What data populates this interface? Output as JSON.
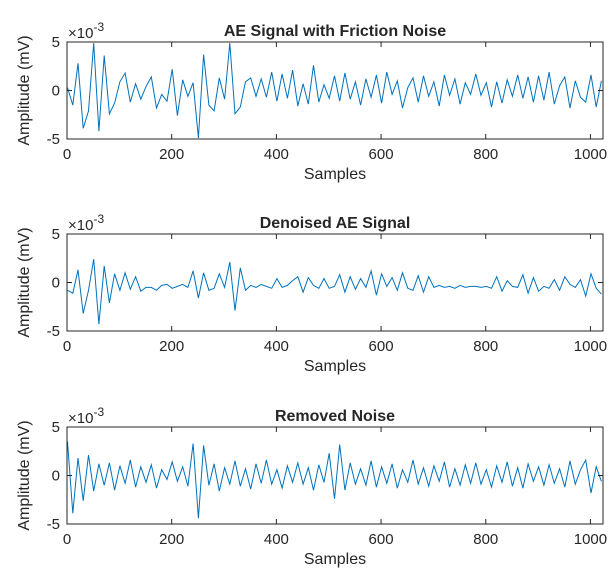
{
  "chart_data": [
    {
      "type": "line",
      "title": "AE Signal with Friction Noise",
      "xlabel": "Samples",
      "ylabel": "Amplitude (mV)",
      "exponent_label": "×10",
      "exponent": "-3",
      "xlim": [
        0,
        1024
      ],
      "ylim": [
        -5,
        5
      ],
      "xticks": [
        "0",
        "200",
        "400",
        "600",
        "800",
        "1000"
      ],
      "yticks": [
        "-5",
        "0",
        "5"
      ],
      "xtick_values": [
        0,
        200,
        400,
        600,
        800,
        1000
      ],
      "ytick_values": [
        -5,
        0,
        5
      ],
      "color": "#0072bd",
      "series": [
        {
          "x_start": 1,
          "x_step": 10,
          "values": [
            0.3,
            -1.5,
            2.8,
            -3.9,
            -2.1,
            4.9,
            -4.2,
            3.6,
            -2.4,
            -1.3,
            0.9,
            1.8,
            -1.2,
            0.7,
            -0.9,
            0.4,
            1.4,
            -1.8,
            -0.4,
            -1.1,
            2.2,
            -2.6,
            1.1,
            -0.6,
            0.8,
            -4.9,
            3.7,
            -1.5,
            -2.1,
            1.3,
            -0.9,
            4.9,
            -2.4,
            -1.7,
            0.9,
            1.3,
            -0.6,
            1.2,
            -0.7,
            1.9,
            -1.1,
            1.7,
            -0.8,
            2.1,
            -1.6,
            0.7,
            -1.4,
            2.6,
            -1.2,
            0.6,
            -0.8,
            1.5,
            -1.1,
            1.8,
            -0.9,
            0.9,
            -1.5,
            1.2,
            -0.7,
            1.6,
            -1.3,
            1.9,
            -0.4,
            1.0,
            -1.8,
            0.3,
            1.3,
            -1.2,
            1.5,
            -0.6,
            0.9,
            -1.6,
            1.6,
            -0.5,
            1.2,
            -1.4,
            0.8,
            -0.4,
            1.7,
            -0.5,
            0.8,
            -1.7,
            0.9,
            -1.3,
            1.1,
            -0.6,
            1.6,
            -0.8,
            1.4,
            -1.2,
            1.5,
            -1.0,
            1.9,
            -1.4,
            0.5,
            1.4,
            -1.8,
            1.0,
            -0.7,
            -1.2,
            1.6,
            -1.7,
            1.0
          ]
        }
      ]
    },
    {
      "type": "line",
      "title": "Denoised AE Signal",
      "xlabel": "Samples",
      "ylabel": "Amplitude (mV)",
      "exponent_label": "×10",
      "exponent": "-3",
      "xlim": [
        0,
        1024
      ],
      "ylim": [
        -5,
        5
      ],
      "xticks": [
        "0",
        "200",
        "400",
        "600",
        "800",
        "1000"
      ],
      "yticks": [
        "-5",
        "0",
        "5"
      ],
      "xtick_values": [
        0,
        200,
        400,
        600,
        800,
        1000
      ],
      "ytick_values": [
        -5,
        0,
        5
      ],
      "color": "#0072bd",
      "series": [
        {
          "x_start": 1,
          "x_step": 10,
          "values": [
            -0.8,
            -1.1,
            1.3,
            -3.2,
            -0.8,
            2.4,
            -4.3,
            1.7,
            -2.1,
            0.9,
            -0.8,
            1.0,
            -0.7,
            0.6,
            -0.9,
            -0.5,
            -0.5,
            -0.8,
            -0.3,
            -0.2,
            -0.6,
            -0.4,
            -0.2,
            -0.5,
            1.2,
            -1.6,
            1.0,
            -0.8,
            -0.6,
            0.9,
            -0.5,
            2.1,
            -2.9,
            1.5,
            -0.8,
            -0.3,
            -0.5,
            -0.2,
            -0.4,
            -0.6,
            0.4,
            -0.5,
            -0.3,
            0.2,
            0.6,
            -1.0,
            0.5,
            -0.3,
            -0.6,
            0.4,
            -0.6,
            -0.4,
            0.8,
            -1.0,
            0.6,
            -0.7,
            0.4,
            -0.5,
            1.2,
            -1.3,
            0.9,
            -0.4,
            0.5,
            -0.8,
            1.0,
            -0.6,
            -0.8,
            0.7,
            -1.0,
            0.6,
            -0.5,
            -0.3,
            -0.5,
            -0.4,
            -0.6,
            -0.3,
            -0.5,
            -0.4,
            -0.4,
            -0.5,
            -0.4,
            -0.6,
            0.6,
            -0.9,
            0.2,
            -0.4,
            -0.5,
            0.8,
            -1.1,
            0.5,
            -0.9,
            -0.4,
            -0.6,
            0.3,
            -0.8,
            0.6,
            -0.2,
            -0.5,
            0.3,
            -1.4,
            0.9,
            -0.6,
            -1.2
          ]
        }
      ]
    },
    {
      "type": "line",
      "title": "Removed Noise",
      "xlabel": "Samples",
      "ylabel": "Amplitude (mV)",
      "exponent_label": "×10",
      "exponent": "-3",
      "xlim": [
        0,
        1024
      ],
      "ylim": [
        -5,
        5
      ],
      "xticks": [
        "0",
        "200",
        "400",
        "600",
        "800",
        "1000"
      ],
      "yticks": [
        "-5",
        "0",
        "5"
      ],
      "xtick_values": [
        0,
        200,
        400,
        600,
        800,
        1000
      ],
      "ytick_values": [
        -5,
        0,
        5
      ],
      "color": "#0072bd",
      "series": [
        {
          "x_start": 1,
          "x_step": 10,
          "values": [
            3.5,
            -3.9,
            1.8,
            -2.6,
            2.1,
            -1.6,
            1.2,
            -1.0,
            1.3,
            -1.5,
            1.0,
            -0.8,
            1.6,
            -1.2,
            0.9,
            -0.7,
            1.1,
            -1.3,
            0.6,
            -0.4,
            1.4,
            -0.6,
            0.9,
            -1.1,
            3.3,
            -4.4,
            3.1,
            -1.0,
            1.2,
            -1.6,
            0.8,
            -0.9,
            1.5,
            -1.1,
            0.7,
            -1.4,
            1.2,
            -0.8,
            1.6,
            -0.9,
            0.6,
            -1.3,
            1.0,
            -0.7,
            1.3,
            -0.9,
            0.8,
            -1.5,
            1.1,
            -0.7,
            2.3,
            -2.4,
            3.2,
            -1.5,
            1.3,
            -0.9,
            0.7,
            -1.0,
            1.5,
            -1.2,
            0.9,
            -0.8,
            1.2,
            -1.3,
            0.6,
            -0.7,
            1.6,
            -0.9,
            0.8,
            -1.1,
            1.0,
            -0.6,
            1.4,
            -1.2,
            0.7,
            -1.0,
            1.1,
            -0.8,
            1.3,
            -0.9,
            0.6,
            -1.2,
            1.0,
            -0.7,
            1.4,
            -1.1,
            0.8,
            -1.3,
            1.2,
            -0.6,
            0.9,
            -1.0,
            1.1,
            -0.8,
            0.7,
            -1.2,
            1.5,
            -0.9,
            0.6,
            1.6,
            -1.8,
            0.9,
            -0.6
          ]
        }
      ]
    }
  ]
}
